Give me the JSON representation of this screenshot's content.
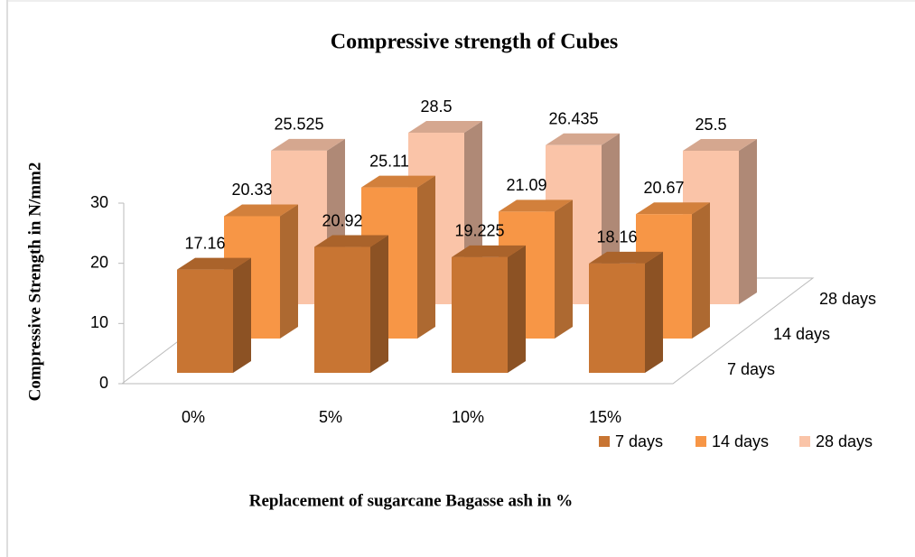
{
  "chart_data": {
    "type": "bar3d",
    "title": "Compressive strength of Cubes",
    "x_label": "Replacement of sugarcane Bagasse ash in %",
    "y_label": "Compressive  Strength  in N/mm2",
    "categories": [
      "0%",
      "5%",
      "10%",
      "15%"
    ],
    "series": [
      {
        "name": "7 days",
        "color": "#c87533",
        "values": [
          17.16,
          20.92,
          19.225,
          18.16
        ]
      },
      {
        "name": "14 days",
        "color": "#f79646",
        "values": [
          20.33,
          25.11,
          21.09,
          20.67
        ]
      },
      {
        "name": "28 days",
        "color": "#fac4a8",
        "values": [
          25.525,
          28.5,
          26.435,
          25.5
        ]
      }
    ],
    "ylim": [
      0,
      30
    ],
    "yticks": [
      0,
      10,
      20,
      30
    ],
    "legend": "bottom-right"
  }
}
